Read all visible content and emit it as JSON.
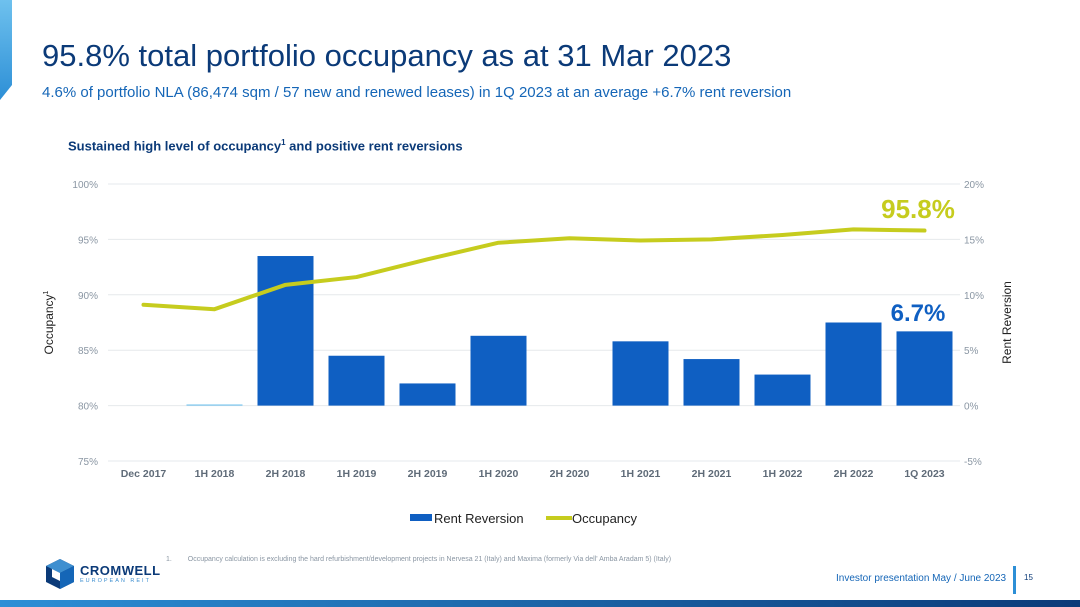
{
  "header": {
    "title": "95.8% total portfolio occupancy as at 31 Mar 2023",
    "subtitle": "4.6% of portfolio NLA (86,474 sqm / 57 new and renewed leases) in 1Q 2023 at an average +6.7% rent reversion"
  },
  "chart_title": "Sustained high level of occupancy",
  "chart_title_sup": "1",
  "chart_title_rest": " and positive rent reversions",
  "chart_data": {
    "type": "bar",
    "categories": [
      "Dec 2017",
      "1H 2018",
      "2H 2018",
      "1H 2019",
      "2H 2019",
      "1H 2020",
      "2H 2020",
      "1H 2021",
      "2H 2021",
      "1H 2022",
      "2H 2022",
      "1Q 2023"
    ],
    "series": [
      {
        "name": "Rent Reversion",
        "type": "bar",
        "axis": "right",
        "color": "#0f5fc2",
        "values": [
          0,
          0.1,
          13.5,
          4.5,
          2.0,
          6.3,
          0,
          5.8,
          4.2,
          2.8,
          7.5,
          6.7
        ]
      },
      {
        "name": "Occupancy",
        "type": "line",
        "axis": "left",
        "color": "#c6cc1e",
        "values": [
          89.1,
          88.7,
          90.9,
          91.6,
          93.2,
          94.7,
          95.1,
          94.9,
          95.0,
          95.4,
          95.9,
          95.8
        ]
      }
    ],
    "y_left": {
      "label": "Occupancy",
      "label_sup": "1",
      "min": 75,
      "max": 100,
      "ticks": [
        "75%",
        "80%",
        "85%",
        "90%",
        "95%",
        "100%"
      ]
    },
    "y_right": {
      "label": "Rent Reversion",
      "min": -5,
      "max": 20,
      "ticks": [
        "-5%",
        "0%",
        "5%",
        "10%",
        "15%",
        "20%"
      ]
    },
    "annotations": [
      {
        "text": "95.8%",
        "color": "#c6cc1e"
      },
      {
        "text": "6.7%",
        "color": "#0f5fc2"
      }
    ],
    "grid": true,
    "legend_position": "bottom"
  },
  "footnote": {
    "number": "1.",
    "text": "Occupancy calculation is excluding the hard refurbishment/development projects in Nervesa 21 (Italy) and Maxima (formerly Via dell' Amba Aradam 5) (Italy)"
  },
  "logo": {
    "name": "CROMWELL",
    "sub": "EUROPEAN REIT"
  },
  "footer": {
    "text": "Investor presentation May / June 2023",
    "page": "15"
  }
}
